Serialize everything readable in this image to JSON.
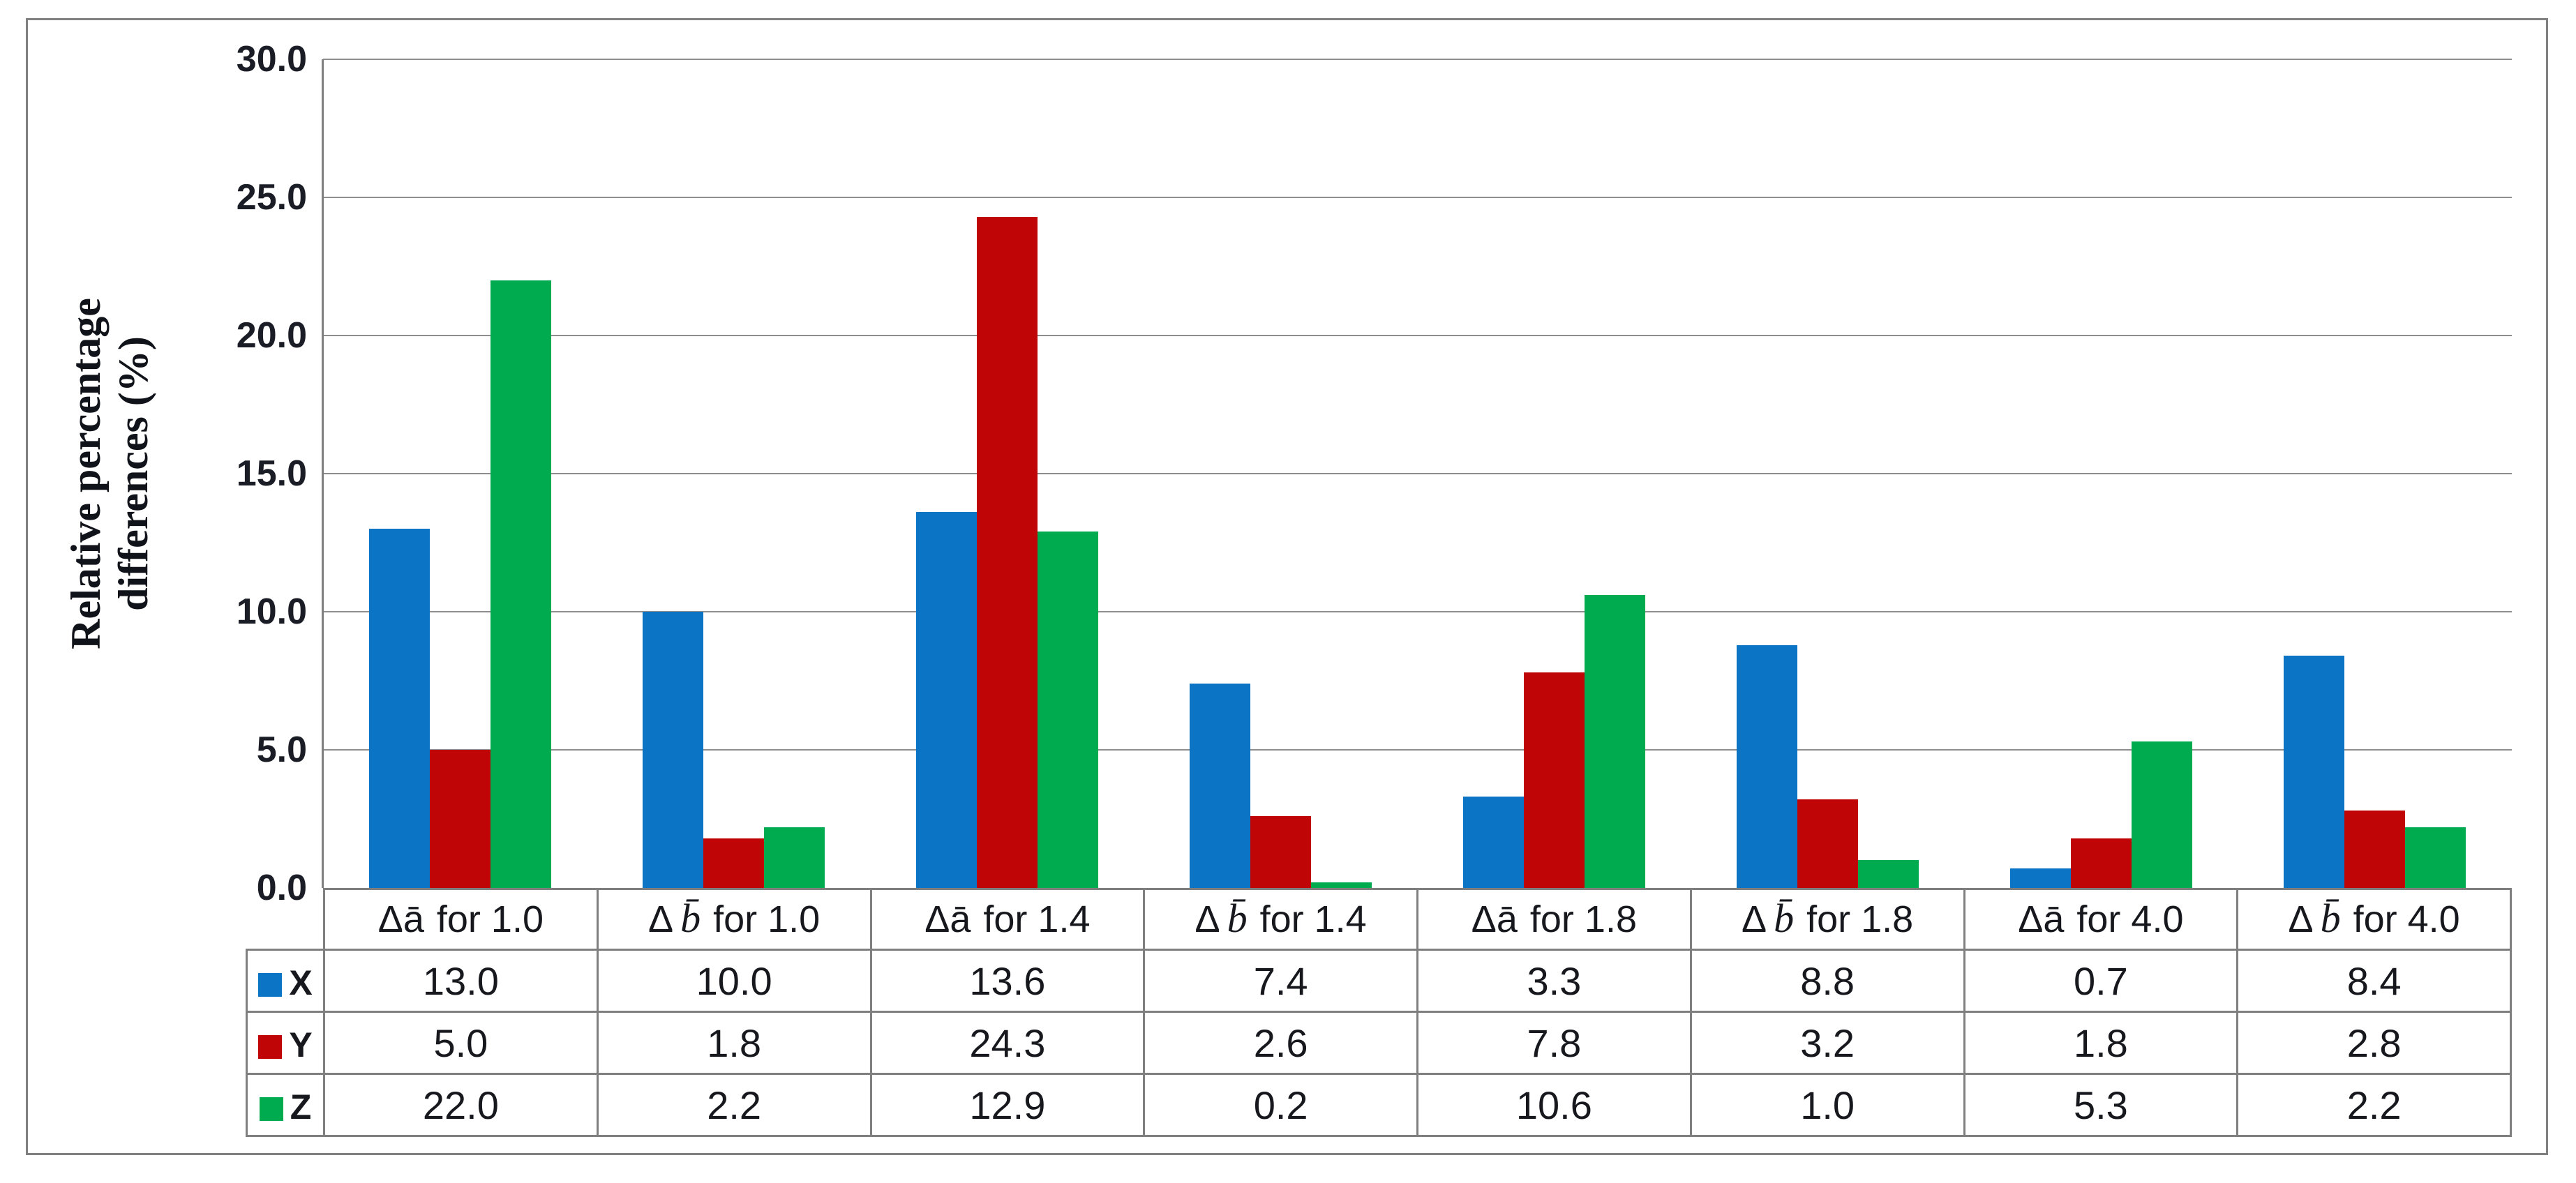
{
  "figure": {
    "border_color": "#808080",
    "grid_color": "#8E8E8E",
    "table_border_color": "#7F7F7F",
    "text_color": "#16181D"
  },
  "chart_data": {
    "type": "bar",
    "title": "",
    "xlabel": "",
    "ylabel": "Relative percentage\ndifferences (%)",
    "ylim": [
      0,
      30
    ],
    "ytick_step": 5,
    "yticks": [
      "0.0",
      "5.0",
      "10.0",
      "15.0",
      "20.0",
      "25.0",
      "30.0"
    ],
    "grid": true,
    "legend_position": "table-left",
    "categories": [
      {
        "label": "Δā for 1.0",
        "delta": "Δ",
        "letter": "ā",
        "letter_class": "letter letter-a",
        "rest": "for 1.0"
      },
      {
        "label": "Δb̄ for 1.0",
        "delta": "Δ",
        "letter": "b̄",
        "letter_class": "letter letter-b",
        "rest": "for 1.0"
      },
      {
        "label": "Δā for 1.4",
        "delta": "Δ",
        "letter": "ā",
        "letter_class": "letter letter-a",
        "rest": "for 1.4"
      },
      {
        "label": "Δb̄ for 1.4",
        "delta": "Δ",
        "letter": "b̄",
        "letter_class": "letter letter-b",
        "rest": "for 1.4"
      },
      {
        "label": "Δā for 1.8",
        "delta": "Δ",
        "letter": "ā",
        "letter_class": "letter letter-a",
        "rest": "for 1.8"
      },
      {
        "label": "Δb̄ for 1.8",
        "delta": "Δ",
        "letter": "b̄",
        "letter_class": "letter letter-b",
        "rest": "for 1.8"
      },
      {
        "label": "Δā for 4.0",
        "delta": "Δ",
        "letter": "ā",
        "letter_class": "letter letter-a",
        "rest": "for 4.0"
      },
      {
        "label": "Δb̄ for 4.0",
        "delta": "Δ",
        "letter": "b̄",
        "letter_class": "letter letter-b",
        "rest": "for 4.0"
      }
    ],
    "series": [
      {
        "name": "X",
        "color": "#0B74C4",
        "values": [
          13.0,
          10.0,
          13.6,
          7.4,
          3.3,
          8.8,
          0.7,
          8.4
        ],
        "labels": [
          "13.0",
          "10.0",
          "13.6",
          "7.4",
          "3.3",
          "8.8",
          "0.7",
          "8.4"
        ]
      },
      {
        "name": "Y",
        "color": "#C00507",
        "values": [
          5.0,
          1.8,
          24.3,
          2.6,
          7.8,
          3.2,
          1.8,
          2.8
        ],
        "labels": [
          "5.0",
          "1.8",
          "24.3",
          "2.6",
          "7.8",
          "3.2",
          "1.8",
          "2.8"
        ]
      },
      {
        "name": "Z",
        "color": "#00AB50",
        "values": [
          22.0,
          2.2,
          12.9,
          0.2,
          10.6,
          1.0,
          5.3,
          2.2
        ],
        "labels": [
          "22.0",
          "2.2",
          "12.9",
          "0.2",
          "10.6",
          "1.0",
          "5.3",
          "2.2"
        ]
      }
    ]
  }
}
